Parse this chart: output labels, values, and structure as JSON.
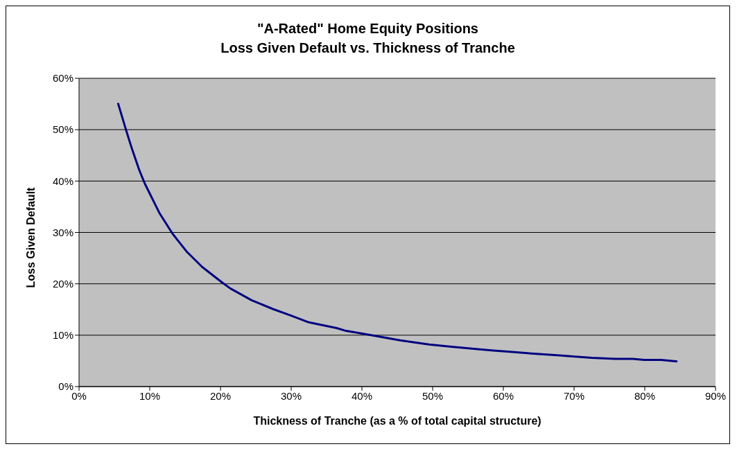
{
  "chart_data": {
    "type": "line",
    "title": "\"A-Rated\" Home Equity Positions\nLoss Given Default vs. Thickness of Tranche",
    "xlabel": "Thickness of Tranche (as a % of total capital structure)",
    "ylabel": "Loss Given Default",
    "x": [
      5.5,
      6.7,
      7.5,
      8.5,
      9.3,
      11.4,
      13.2,
      15.2,
      17.4,
      20.2,
      21.4,
      24.4,
      25.3,
      27.4,
      30.0,
      32.5,
      36.4,
      37.6,
      41.7,
      45.4,
      49.5,
      52.4,
      56.1,
      58.6,
      60.6,
      64.3,
      67.6,
      70.5,
      72.5,
      75.8,
      78.3,
      79.9,
      82.3,
      84.6
    ],
    "series": [
      {
        "color": "#000080",
        "values": [
          55.2,
          49.7,
          46.2,
          42.2,
          39.5,
          33.7,
          29.8,
          26.3,
          23.3,
          20.3,
          19.1,
          16.8,
          16.3,
          15.1,
          13.8,
          12.5,
          11.4,
          10.9,
          9.9,
          9.0,
          8.2,
          7.8,
          7.3,
          7.0,
          6.8,
          6.4,
          6.1,
          5.8,
          5.6,
          5.4,
          5.4,
          5.2,
          5.2,
          4.9
        ]
      }
    ],
    "xlim": [
      0,
      90
    ],
    "xticks": [
      {
        "value": 0,
        "label": "0%"
      },
      {
        "value": 10,
        "label": "10%"
      },
      {
        "value": 20,
        "label": "20%"
      },
      {
        "value": 30,
        "label": "30%"
      },
      {
        "value": 40,
        "label": "40%"
      },
      {
        "value": 50,
        "label": "50%"
      },
      {
        "value": 60,
        "label": "60%"
      },
      {
        "value": 70,
        "label": "70%"
      },
      {
        "value": 80,
        "label": "80%"
      },
      {
        "value": 90,
        "label": "90%"
      }
    ],
    "ylim": [
      0,
      60
    ],
    "yticks": [
      {
        "value": 0,
        "label": "0%"
      },
      {
        "value": 10,
        "label": "10%"
      },
      {
        "value": 20,
        "label": "20%"
      },
      {
        "value": 30,
        "label": "30%"
      },
      {
        "value": 40,
        "label": "40%"
      },
      {
        "value": 50,
        "label": "50%"
      },
      {
        "value": 60,
        "label": "60%"
      }
    ],
    "grid": "y",
    "marker": "none",
    "line_style": "solid"
  }
}
